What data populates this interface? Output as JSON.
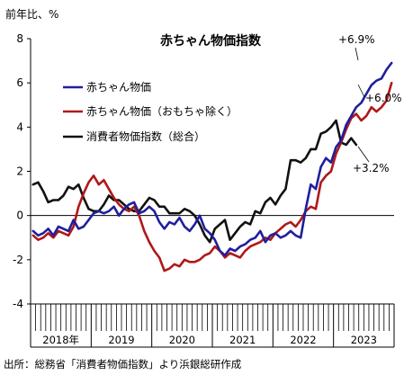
{
  "chart_data": {
    "type": "line",
    "title": "赤ちゃん物価指数",
    "ylabel": "前年比、%",
    "source": "出所：総務省「消費者物価指数」より浜銀総研作成",
    "ylim": [
      -4,
      8
    ],
    "yticks": [
      8,
      6,
      4,
      2,
      0,
      -2,
      -4
    ],
    "year_labels": [
      "2018年",
      "2019",
      "2020",
      "2021",
      "2022",
      "2023"
    ],
    "months_per_year": 12,
    "grid": false,
    "legend_position": "top-left",
    "series": [
      {
        "name": "赤ちゃん物価",
        "color": "#1f1f9e",
        "values": [
          -0.7,
          -0.9,
          -0.8,
          -0.6,
          -0.9,
          -0.5,
          -0.6,
          -0.7,
          -0.2,
          -0.6,
          -0.5,
          -0.2,
          0.1,
          0.2,
          0.1,
          0.2,
          0.4,
          0.0,
          0.3,
          0.5,
          0.6,
          0.1,
          0.2,
          0.4,
          0.2,
          -0.3,
          -0.6,
          -0.3,
          -0.4,
          -0.1,
          -0.5,
          -0.7,
          -0.4,
          0.0,
          -0.6,
          -0.8,
          -1.1,
          -1.6,
          -1.8,
          -1.5,
          -1.6,
          -1.4,
          -1.3,
          -1.1,
          -1.0,
          -0.7,
          -1.2,
          -0.9,
          -0.8,
          -1.0,
          -0.9,
          -0.7,
          -0.9,
          -1.0,
          0.3,
          1.4,
          1.2,
          2.2,
          2.6,
          2.4,
          3.1,
          3.4,
          4.1,
          4.5,
          4.9,
          5.1,
          5.5,
          5.9,
          6.1,
          6.2,
          6.6,
          6.9
        ]
      },
      {
        "name": "赤ちゃん物価（おもちゃ除く）",
        "color": "#b01818",
        "values": [
          -0.9,
          -1.1,
          -1.0,
          -0.8,
          -1.0,
          -0.7,
          -0.8,
          -0.9,
          -0.5,
          0.4,
          1.0,
          1.5,
          1.8,
          1.4,
          1.6,
          1.2,
          0.8,
          0.5,
          0.3,
          0.2,
          0.4,
          0.0,
          -0.7,
          -1.2,
          -1.6,
          -1.9,
          -2.5,
          -2.4,
          -2.2,
          -2.3,
          -2.0,
          -2.1,
          -2.1,
          -2.0,
          -1.8,
          -1.7,
          -1.4,
          -1.6,
          -1.9,
          -1.7,
          -1.8,
          -1.9,
          -1.6,
          -1.4,
          -1.3,
          -1.2,
          -1.0,
          -1.1,
          -0.8,
          -0.6,
          -0.4,
          -0.3,
          -0.5,
          -0.2,
          0.2,
          0.4,
          0.3,
          1.5,
          1.8,
          2.0,
          2.8,
          3.3,
          3.9,
          4.4,
          4.6,
          4.3,
          4.5,
          4.9,
          4.7,
          4.9,
          5.2,
          6.0
        ]
      },
      {
        "name": "消費者物価指数（総合）",
        "color": "#111111",
        "values": [
          1.4,
          1.5,
          1.1,
          0.6,
          0.7,
          0.7,
          0.9,
          1.3,
          1.2,
          1.4,
          0.8,
          0.3,
          0.2,
          0.2,
          0.5,
          0.9,
          0.7,
          0.7,
          0.5,
          0.3,
          0.2,
          0.2,
          0.5,
          0.8,
          0.7,
          0.4,
          0.4,
          0.1,
          0.1,
          0.1,
          0.3,
          0.2,
          0.0,
          -0.4,
          -0.9,
          -1.2,
          -0.6,
          -0.4,
          -0.2,
          -1.1,
          -0.8,
          -0.5,
          -0.3,
          -0.4,
          0.2,
          0.1,
          0.6,
          0.8,
          0.5,
          0.9,
          1.2,
          2.5,
          2.5,
          2.4,
          2.6,
          3.0,
          3.0,
          3.7,
          3.8,
          4.0,
          4.3,
          3.3,
          3.2,
          3.5,
          3.2
        ]
      }
    ],
    "annotations": [
      {
        "series": 0,
        "text": "+6.9%"
      },
      {
        "series": 1,
        "text": "+6.0%"
      },
      {
        "series": 2,
        "text": "+3.2%"
      }
    ]
  }
}
